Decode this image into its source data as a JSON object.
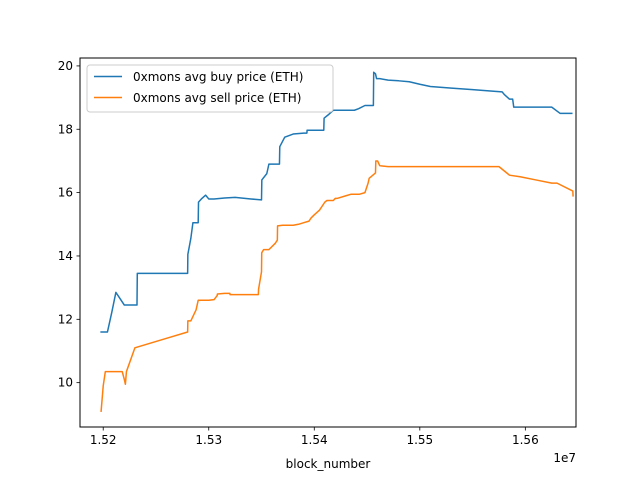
{
  "chart_data": {
    "type": "line",
    "title": "",
    "xlabel": "block_number",
    "ylabel": "",
    "x_offset_label": "1e7",
    "xlim": [
      15178000,
      15648000
    ],
    "ylim": [
      8.6,
      20.25
    ],
    "x_ticks": [
      {
        "value": 15200000,
        "label": "1.52"
      },
      {
        "value": 15300000,
        "label": "1.53"
      },
      {
        "value": 15400000,
        "label": "1.54"
      },
      {
        "value": 15500000,
        "label": "1.55"
      },
      {
        "value": 15600000,
        "label": "1.56"
      }
    ],
    "y_ticks": [
      {
        "value": 10,
        "label": "10"
      },
      {
        "value": 12,
        "label": "12"
      },
      {
        "value": 14,
        "label": "14"
      },
      {
        "value": 16,
        "label": "16"
      },
      {
        "value": 18,
        "label": "18"
      },
      {
        "value": 20,
        "label": "20"
      }
    ],
    "grid": false,
    "legend_position": "top-left",
    "series": [
      {
        "name": "0xmons avg buy price (ETH)",
        "color": "#1f77b4",
        "x": [
          15198000,
          15204000,
          15208000,
          15212000,
          15216000,
          15220000,
          15225000,
          15230000,
          15232000,
          15232300,
          15240000,
          15260000,
          15280000,
          15280200,
          15283000,
          15285000,
          15290000,
          15290300,
          15293000,
          15297000,
          15300000,
          15305000,
          15315000,
          15325000,
          15340000,
          15350000,
          15350300,
          15355000,
          15357000,
          15367000,
          15367300,
          15372000,
          15380000,
          15390000,
          15393000,
          15393200,
          15400000,
          15409000,
          15409300,
          15413000,
          15418000,
          15421000,
          15430000,
          15438000,
          15442000,
          15448000,
          15453000,
          15456000,
          15456300,
          15458000,
          15459000,
          15462000,
          15470000,
          15480000,
          15490000,
          15500000,
          15510000,
          15530000,
          15550000,
          15570000,
          15578000,
          15580000,
          15585000,
          15588000,
          15589000,
          15600000,
          15625000,
          15633000,
          15640000,
          15644000
        ],
        "y": [
          11.6,
          11.6,
          12.2,
          12.85,
          12.65,
          12.45,
          12.45,
          12.45,
          12.45,
          13.45,
          13.45,
          13.45,
          13.45,
          14.05,
          14.55,
          15.05,
          15.05,
          15.7,
          15.8,
          15.92,
          15.8,
          15.8,
          15.83,
          15.85,
          15.8,
          15.77,
          16.4,
          16.6,
          16.9,
          16.9,
          17.45,
          17.75,
          17.85,
          17.88,
          17.88,
          17.97,
          17.97,
          17.97,
          18.35,
          18.45,
          18.6,
          18.6,
          18.6,
          18.6,
          18.65,
          18.75,
          18.75,
          18.75,
          19.8,
          19.75,
          19.6,
          19.6,
          19.55,
          19.53,
          19.5,
          19.42,
          19.35,
          19.3,
          19.25,
          19.2,
          19.18,
          19.1,
          18.95,
          18.95,
          18.7,
          18.7,
          18.7,
          18.5,
          18.5,
          18.5
        ]
      },
      {
        "name": "0xmons avg sell price (ETH)",
        "color": "#ff7f0e",
        "x": [
          15198000,
          15200000,
          15202000,
          15208000,
          15215000,
          15218000,
          15220000,
          15221000,
          15222000,
          15230000,
          15260000,
          15280000,
          15280200,
          15283000,
          15288000,
          15290000,
          15300000,
          15305000,
          15308000,
          15308200,
          15315000,
          15320000,
          15320200,
          15330000,
          15345000,
          15347000,
          15347200,
          15350000,
          15350200,
          15352000,
          15354000,
          15357000,
          15363000,
          15365000,
          15365200,
          15370000,
          15380000,
          15385000,
          15390000,
          15395000,
          15397000,
          15400000,
          15405000,
          15410000,
          15412000,
          15418000,
          15420000,
          15422000,
          15430000,
          15435000,
          15438000,
          15443000,
          15448000,
          15451000,
          15452000,
          15458000,
          15458300,
          15460000,
          15462000,
          15470000,
          15500000,
          15550000,
          15575000,
          15585000,
          15595000,
          15610000,
          15625000,
          15630000,
          15645000,
          15645200
        ],
        "y": [
          9.1,
          9.9,
          10.35,
          10.35,
          10.35,
          10.35,
          10.1,
          9.95,
          10.35,
          11.1,
          11.4,
          11.6,
          11.95,
          11.95,
          12.3,
          12.6,
          12.6,
          12.62,
          12.75,
          12.8,
          12.82,
          12.82,
          12.78,
          12.78,
          12.78,
          12.78,
          12.95,
          13.5,
          14.1,
          14.2,
          14.2,
          14.2,
          14.4,
          14.5,
          14.95,
          14.97,
          14.97,
          15.0,
          15.05,
          15.1,
          15.2,
          15.3,
          15.45,
          15.7,
          15.75,
          15.75,
          15.82,
          15.82,
          15.9,
          15.95,
          15.95,
          15.95,
          16.0,
          16.3,
          16.45,
          16.62,
          17.0,
          17.0,
          16.85,
          16.82,
          16.82,
          16.82,
          16.82,
          16.55,
          16.5,
          16.4,
          16.3,
          16.3,
          16.05,
          15.9
        ]
      }
    ]
  }
}
